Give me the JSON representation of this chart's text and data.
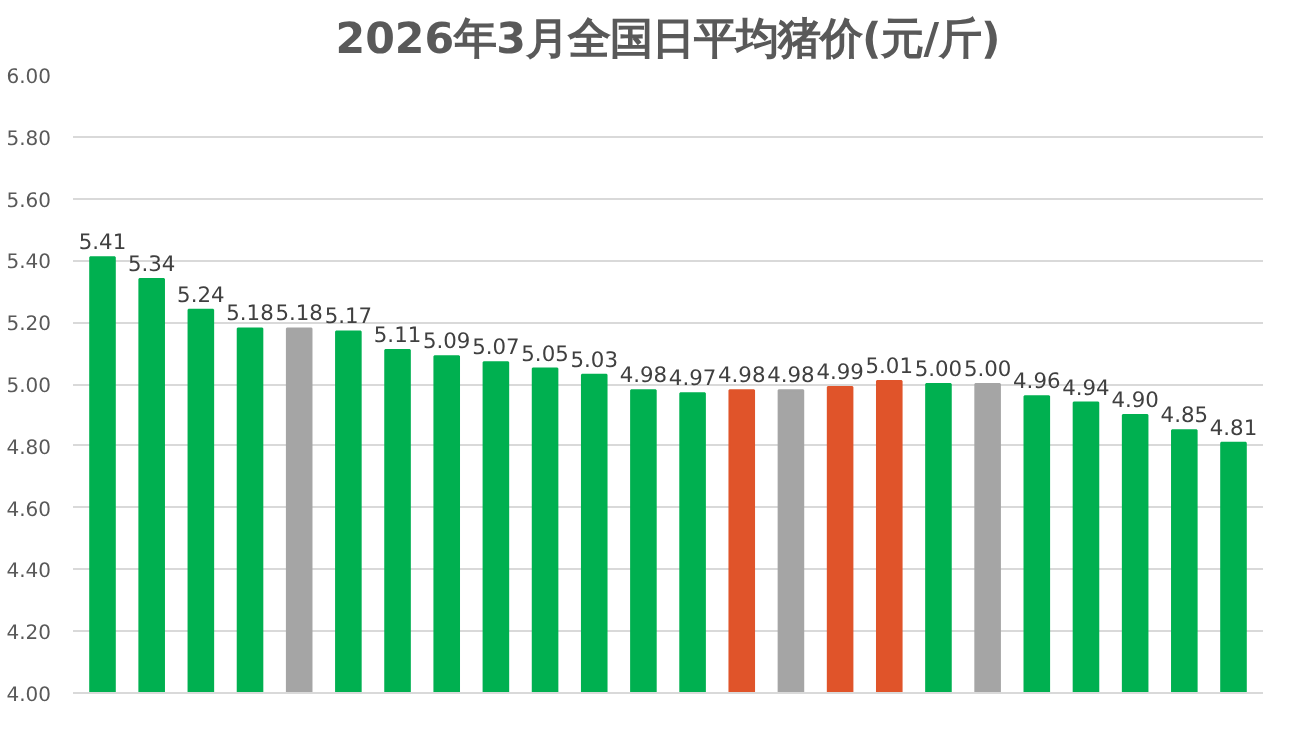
{
  "chart_data": {
    "type": "bar",
    "title": "2026年3月全国日平均猪价(元/斤)",
    "categories": [
      null,
      null,
      null,
      null,
      null,
      null,
      null,
      null,
      null,
      null,
      null,
      null,
      null,
      null,
      null,
      null,
      null,
      null,
      null,
      null,
      null,
      null,
      null,
      null
    ],
    "values": [
      5.41,
      5.34,
      5.24,
      5.18,
      5.18,
      5.17,
      5.11,
      5.09,
      5.07,
      5.05,
      5.03,
      4.98,
      4.97,
      4.98,
      4.98,
      4.99,
      5.01,
      5.0,
      5.0,
      4.96,
      4.94,
      4.9,
      4.85,
      4.81
    ],
    "value_labels": [
      "5.41",
      "5.34",
      "5.24",
      "5.18",
      "5.18",
      "5.17",
      "5.11",
      "5.09",
      "5.07",
      "5.05",
      "5.03",
      "4.98",
      "4.97",
      "4.98",
      "4.98",
      "4.99",
      "5.01",
      "5.00",
      "5.00",
      "4.96",
      "4.94",
      "4.90",
      "4.85",
      "4.81"
    ],
    "colors": [
      "#00b050",
      "#00b050",
      "#00b050",
      "#00b050",
      "#a5a5a5",
      "#00b050",
      "#00b050",
      "#00b050",
      "#00b050",
      "#00b050",
      "#00b050",
      "#00b050",
      "#00b050",
      "#e0542a",
      "#a5a5a5",
      "#e0542a",
      "#e0542a",
      "#00b050",
      "#a5a5a5",
      "#00b050",
      "#00b050",
      "#00b050",
      "#00b050",
      "#00b050"
    ],
    "ylim": [
      4.0,
      6.0
    ],
    "yticks": [
      {
        "value": 4.0,
        "label": "4.00"
      },
      {
        "value": 4.2,
        "label": "4.20"
      },
      {
        "value": 4.4,
        "label": "4.40"
      },
      {
        "value": 4.6,
        "label": "4.60"
      },
      {
        "value": 4.8,
        "label": "4.80"
      },
      {
        "value": 5.0,
        "label": "5.00"
      },
      {
        "value": 5.2,
        "label": "5.20"
      },
      {
        "value": 5.4,
        "label": "5.40"
      },
      {
        "value": 5.6,
        "label": "5.60"
      },
      {
        "value": 5.8,
        "label": "5.80"
      },
      {
        "value": 6.0,
        "label": "6.00"
      }
    ],
    "grid": "y",
    "tick_labels": "y"
  }
}
